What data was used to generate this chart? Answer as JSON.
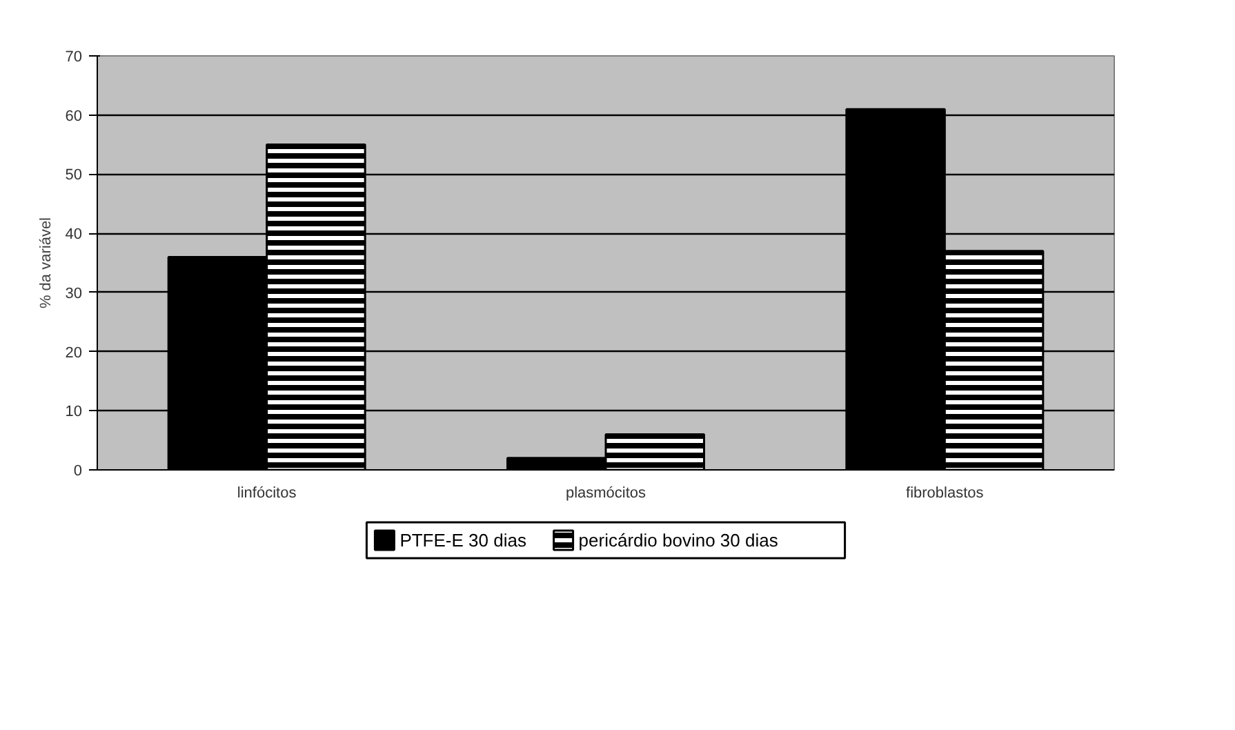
{
  "chart_data": {
    "type": "bar",
    "ylabel": "% da variável",
    "categories": [
      "linfócitos",
      "plasmócitos",
      "fibroblastos"
    ],
    "series": [
      {
        "name": "PTFE-E 30 dias",
        "color": "#000000",
        "values": [
          36,
          2,
          61
        ]
      },
      {
        "name": "pericárdio bovino 30 dias",
        "color": "#000000",
        "values": [
          55,
          6,
          37
        ]
      }
    ],
    "ylim": [
      0,
      70
    ],
    "yticks": [
      0,
      10,
      20,
      30,
      40,
      50,
      60,
      70
    ],
    "grid": "y",
    "legend": "bottom"
  }
}
